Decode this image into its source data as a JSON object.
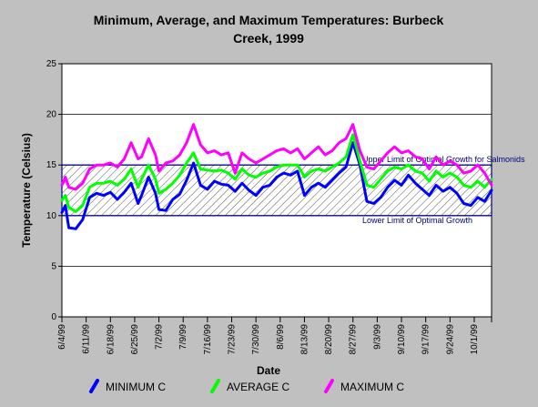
{
  "chart_data": {
    "type": "line",
    "title_line1": "Minimum, Average, and Maximum Temperatures:  Burbeck",
    "title_line2": "Creek, 1999",
    "xlabel": "Date",
    "ylabel": "Temperature (Celsius)",
    "ylim": [
      0,
      25
    ],
    "yticks": [
      0,
      5,
      10,
      15,
      20,
      25
    ],
    "grid": true,
    "xlim": [
      0,
      124
    ],
    "x_tick_labels": [
      "6/4/99",
      "6/11/99",
      "6/18/99",
      "6/25/99",
      "7/2/99",
      "7/9/99",
      "7/16/99",
      "7/23/99",
      "7/30/99",
      "8/6/99",
      "8/13/99",
      "8/20/99",
      "8/27/99",
      "9/3/99",
      "9/10/99",
      "9/17/99",
      "9/24/99",
      "10/1/99"
    ],
    "x_tick_days": [
      0,
      7,
      14,
      21,
      28,
      35,
      42,
      49,
      56,
      63,
      70,
      77,
      84,
      91,
      98,
      105,
      112,
      119
    ],
    "x_day_labels": [
      "6/4/99",
      "6/11/99",
      "6/18/99",
      "6/25/99",
      "7/2/99",
      "7/9/99",
      "7/16/99",
      "7/23/99",
      "7/30/99",
      "8/6/99",
      "8/13/99",
      "8/20/99",
      "8/27/99",
      "9/3/99",
      "9/10/99",
      "9/17/99",
      "9/24/99",
      "10/1/99",
      "10/6/99"
    ],
    "band": {
      "low": 10,
      "high": 15
    },
    "annotations": {
      "upper": "Upper Limit of Optimal Growth for Salmonids",
      "lower": "Lower Limit of Optimal Growth"
    },
    "x": [
      "6/4/99",
      "6/5/99",
      "6/6/99",
      "6/8/99",
      "6/10/99",
      "6/12/99",
      "6/14/99",
      "6/16/99",
      "6/18/99",
      "6/20/99",
      "6/22/99",
      "6/24/99",
      "6/26/99",
      "6/27/99",
      "6/29/99",
      "7/1/99",
      "7/2/99",
      "7/4/99",
      "7/6/99",
      "7/8/99",
      "7/10/99",
      "7/12/99",
      "7/14/99",
      "7/16/99",
      "7/18/99",
      "7/20/99",
      "7/22/99",
      "7/24/99",
      "7/26/99",
      "7/28/99",
      "7/30/99",
      "8/1/99",
      "8/3/99",
      "8/5/99",
      "8/7/99",
      "8/9/99",
      "8/11/99",
      "8/13/99",
      "8/15/99",
      "8/17/99",
      "8/19/99",
      "8/21/99",
      "8/23/99",
      "8/25/99",
      "8/27/99",
      "8/29/99",
      "8/31/99",
      "9/2/99",
      "9/4/99",
      "9/6/99",
      "9/8/99",
      "9/10/99",
      "9/12/99",
      "9/14/99",
      "9/16/99",
      "9/18/99",
      "9/20/99",
      "9/22/99",
      "9/24/99",
      "9/26/99",
      "9/28/99",
      "9/30/99",
      "10/2/99",
      "10/4/99",
      "10/6/99"
    ],
    "series": [
      {
        "name": "MINIMUM C",
        "color": "#0000ff",
        "values": [
          10.3,
          11.0,
          8.8,
          8.7,
          9.6,
          11.8,
          12.2,
          12.0,
          12.3,
          11.6,
          12.3,
          13.2,
          11.2,
          12.0,
          13.8,
          12.2,
          10.6,
          10.5,
          11.6,
          12.1,
          13.5,
          15.2,
          13.0,
          12.6,
          13.4,
          13.1,
          13.0,
          12.4,
          13.2,
          12.5,
          12.0,
          12.8,
          13.0,
          13.8,
          14.2,
          14.0,
          14.4,
          12.0,
          12.8,
          13.2,
          12.8,
          13.5,
          14.2,
          14.8,
          17.2,
          15.0,
          11.4,
          11.2,
          11.8,
          12.8,
          13.5,
          13.0,
          14.0,
          13.2,
          12.6,
          12.0,
          13.0,
          12.4,
          12.8,
          12.2,
          11.2,
          11.0,
          11.8,
          11.4,
          12.5
        ]
      },
      {
        "name": "AVERAGE C",
        "color": "#00ff00",
        "values": [
          11.5,
          12.0,
          10.8,
          10.4,
          11.0,
          12.8,
          13.2,
          13.2,
          13.4,
          13.0,
          13.6,
          14.6,
          12.8,
          13.6,
          15.0,
          13.6,
          12.2,
          12.6,
          13.2,
          14.0,
          15.2,
          16.2,
          14.6,
          14.5,
          14.4,
          14.5,
          14.2,
          13.6,
          14.6,
          14.0,
          13.8,
          14.2,
          14.4,
          14.8,
          15.0,
          15.0,
          15.0,
          13.8,
          14.4,
          14.6,
          14.4,
          14.8,
          15.2,
          15.8,
          18.0,
          15.4,
          13.0,
          12.8,
          13.6,
          14.4,
          14.8,
          14.6,
          15.0,
          14.4,
          14.2,
          13.4,
          14.4,
          13.8,
          14.2,
          13.8,
          13.0,
          12.8,
          13.4,
          12.8,
          13.6
        ]
      },
      {
        "name": "MAXIMUM C",
        "color": "#ff00ff",
        "values": [
          13.0,
          13.8,
          12.8,
          12.6,
          13.2,
          14.6,
          15.0,
          15.0,
          15.2,
          14.8,
          15.6,
          17.2,
          15.6,
          15.8,
          17.6,
          16.0,
          14.4,
          15.2,
          15.4,
          16.0,
          17.2,
          19.0,
          17.0,
          16.2,
          16.4,
          16.0,
          16.2,
          14.2,
          16.2,
          15.6,
          15.2,
          15.6,
          16.0,
          16.4,
          16.6,
          16.2,
          16.6,
          15.6,
          16.2,
          16.8,
          16.0,
          16.4,
          17.2,
          17.6,
          19.0,
          16.4,
          14.8,
          14.6,
          15.4,
          16.2,
          16.8,
          16.2,
          16.4,
          15.8,
          15.6,
          14.6,
          15.8,
          15.0,
          15.4,
          15.0,
          14.2,
          14.4,
          15.0,
          14.2,
          13.0
        ]
      }
    ]
  }
}
